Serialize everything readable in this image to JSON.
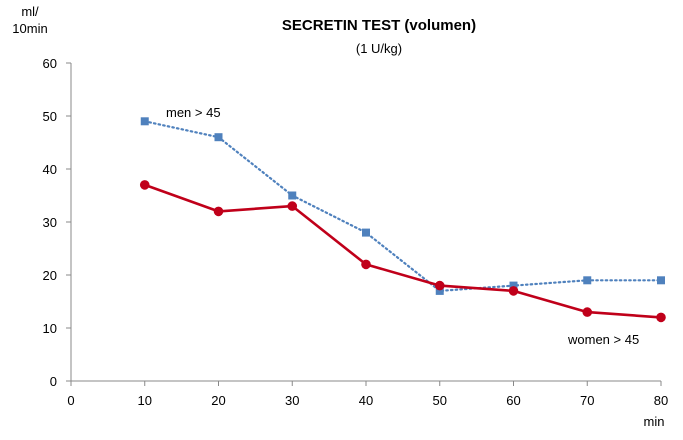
{
  "chart_data": {
    "type": "line",
    "title": "SECRETIN TEST (volumen)",
    "subtitle": "(1 U/kg)",
    "ylabel_line1": "ml/",
    "ylabel_line2": "10min",
    "xlabel": "min",
    "xlim": [
      0,
      80
    ],
    "ylim": [
      0,
      60
    ],
    "x_ticks": [
      0,
      10,
      20,
      30,
      40,
      50,
      60,
      70,
      80
    ],
    "y_ticks": [
      0,
      10,
      20,
      30,
      40,
      50,
      60
    ],
    "grid": false,
    "series": [
      {
        "name": "men > 45",
        "color": "#4f81bd",
        "line_style": "dotted",
        "marker": "square",
        "x": [
          10,
          20,
          30,
          40,
          50,
          60,
          70,
          80
        ],
        "y": [
          49,
          46,
          35,
          28,
          17,
          18,
          19,
          19
        ]
      },
      {
        "name": "women > 45",
        "color": "#c0001a",
        "line_style": "solid",
        "marker": "circle",
        "x": [
          10,
          20,
          30,
          40,
          50,
          60,
          70,
          80
        ],
        "y": [
          37,
          32,
          33,
          22,
          18,
          17,
          13,
          12
        ]
      }
    ]
  }
}
